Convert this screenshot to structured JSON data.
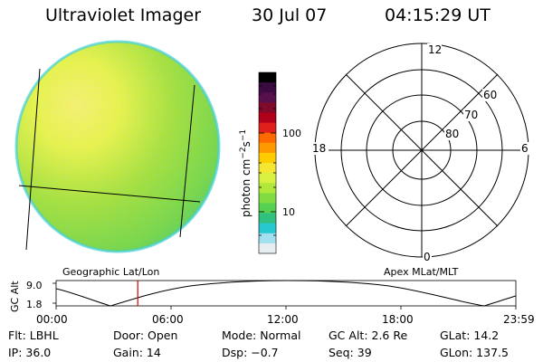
{
  "header": {
    "title": "Ultraviolet Imager",
    "date": "30 Jul 07",
    "time": "04:15:29 UT"
  },
  "colorbar": {
    "unit": "photon cm",
    "exp1": "−2",
    "unit_s": "s",
    "exp2": "−1",
    "ticks": [
      "100",
      "10"
    ],
    "colors": [
      "#000000",
      "#3a0a40",
      "#5a0f4d",
      "#800a2a",
      "#b0001a",
      "#e0201a",
      "#ff6a00",
      "#ff9900",
      "#ffcc00",
      "#f4e633",
      "#d8f040",
      "#b0e83c",
      "#80dc40",
      "#55d050",
      "#30c080",
      "#28c8d0",
      "#a0e0f0",
      "#e6eef2"
    ]
  },
  "left_panel": {
    "label": "Geographic Lat/Lon"
  },
  "right_panel": {
    "label": "Apex MLat/MLT",
    "mlt_labels": [
      "12",
      "18",
      "6",
      "0"
    ],
    "lat_labels": [
      "60",
      "70",
      "80"
    ]
  },
  "gc_alt_plot": {
    "ylabel": "GC Alt",
    "ticks": [
      "9.0",
      "1.8"
    ],
    "x_labels": [
      "00:00",
      "06:00",
      "12:00",
      "18:00",
      "23:59"
    ],
    "marker_hour": 4.26,
    "marker_color": "#d00000"
  },
  "info": {
    "flt": "Flt: LBHL",
    "ip": "IP: 36.0",
    "door": "Door: Open",
    "gain": "Gain: 14",
    "mode": "Mode: Normal",
    "dsp": "Dsp:   −0.7",
    "gcalt": "GC Alt: 2.6 Re",
    "seq": "Seq: 39",
    "glat": "GLat:  14.2",
    "glon": "GLon: 137.5"
  }
}
